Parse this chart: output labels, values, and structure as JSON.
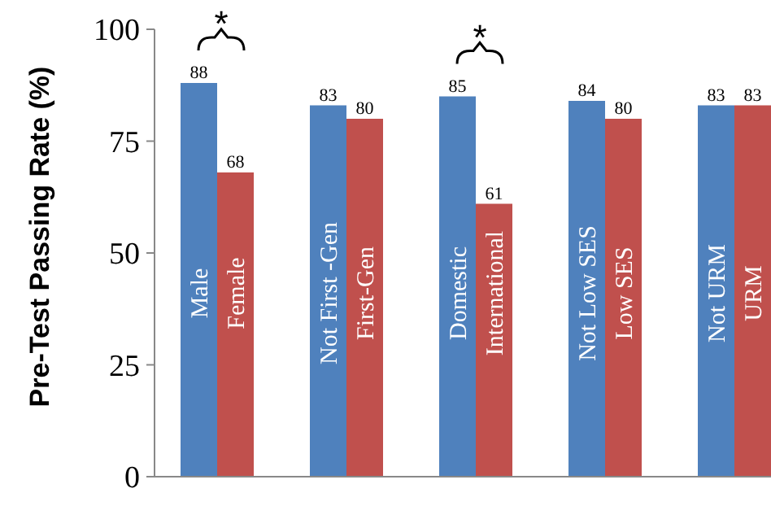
{
  "chart_data": {
    "type": "bar",
    "ylabel": "Pre-Test Passing Rate (%)",
    "categories": [
      "Male",
      "Female",
      "Not First -Gen",
      "First-Gen",
      "Domestic",
      "International",
      "Not Low SES",
      "Low SES",
      "Not URM",
      "URM"
    ],
    "values": [
      88,
      68,
      83,
      80,
      85,
      61,
      84,
      80,
      83,
      83
    ],
    "colors": [
      "#4f81bd",
      "#c0504d",
      "#4f81bd",
      "#c0504d",
      "#4f81bd",
      "#c0504d",
      "#4f81bd",
      "#c0504d",
      "#4f81bd",
      "#c0504d"
    ],
    "ylim": [
      0,
      100
    ],
    "yticks": [
      0,
      25,
      50,
      75,
      100
    ],
    "data_labels": true,
    "grid": false,
    "annotations": [
      {
        "text": "*",
        "x": "Male",
        "y": 88
      },
      {
        "text": "*",
        "x": "Domestic",
        "y": 85
      }
    ]
  }
}
